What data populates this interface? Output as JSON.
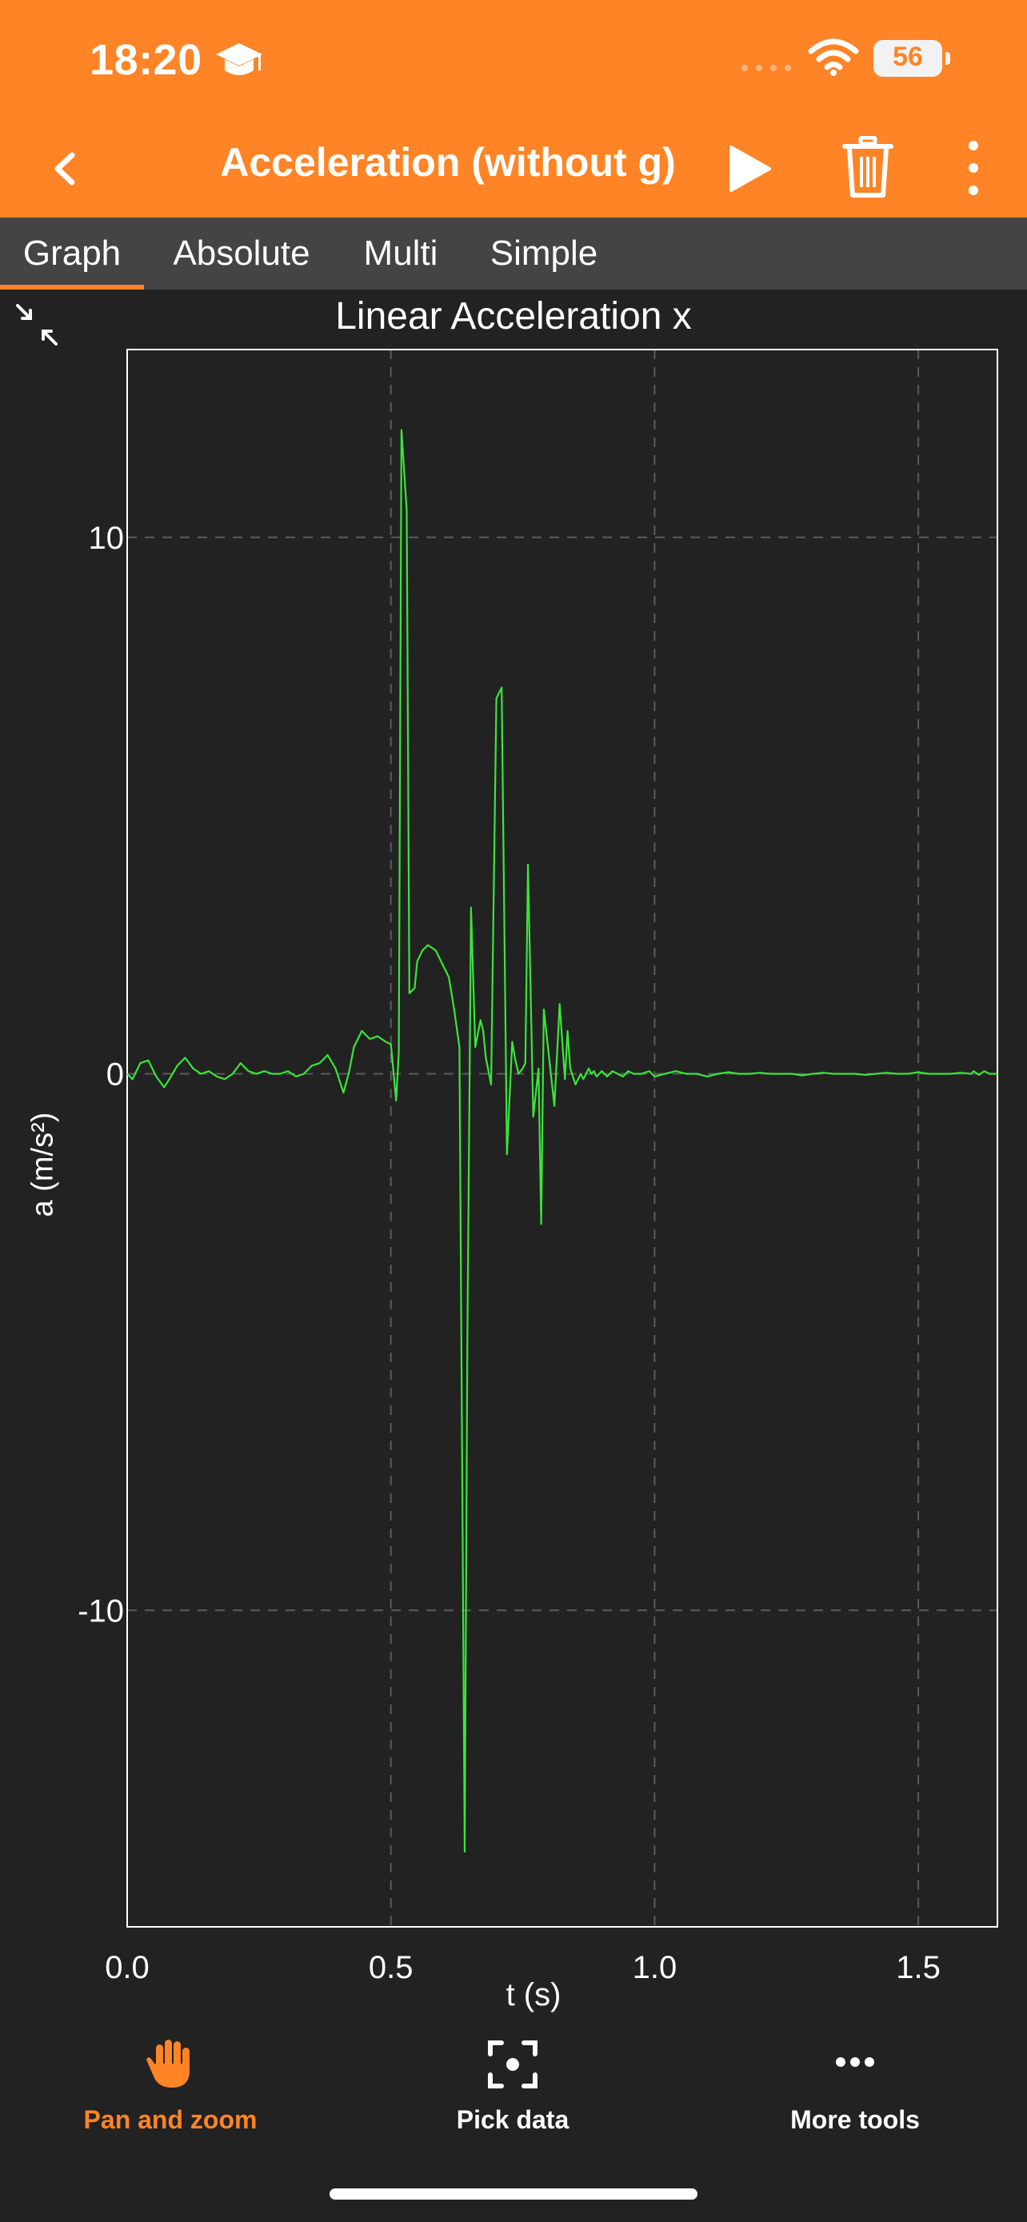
{
  "status_bar": {
    "time": "18:20",
    "battery_level": "56"
  },
  "nav_bar": {
    "title": "Acceleration (without g)"
  },
  "tabs": [
    {
      "label": "Graph",
      "active": true
    },
    {
      "label": "Absolute",
      "active": false
    },
    {
      "label": "Multi",
      "active": false
    },
    {
      "label": "Simple",
      "active": false
    }
  ],
  "chart_data": {
    "type": "line",
    "title": "Linear Acceleration x",
    "xlabel": "t (s)",
    "ylabel": "a (m/s²)",
    "xlim": [
      0.0,
      1.65
    ],
    "ylim": [
      -15.9,
      13.5
    ],
    "xticks": [
      0.0,
      0.5,
      1.0,
      1.5
    ],
    "xtick_labels": [
      "0.0",
      "0.5",
      "1.0",
      "1.5"
    ],
    "yticks": [
      10,
      0,
      -10
    ],
    "ytick_labels": [
      "10",
      "0",
      "-10"
    ],
    "grid": true,
    "series": [
      {
        "color": "#39e639",
        "x": [
          0.0,
          0.01,
          0.025,
          0.04,
          0.055,
          0.07,
          0.08,
          0.095,
          0.11,
          0.125,
          0.14,
          0.155,
          0.17,
          0.185,
          0.2,
          0.215,
          0.23,
          0.245,
          0.26,
          0.275,
          0.29,
          0.305,
          0.32,
          0.335,
          0.35,
          0.365,
          0.38,
          0.395,
          0.41,
          0.42,
          0.43,
          0.445,
          0.46,
          0.475,
          0.49,
          0.5,
          0.51,
          0.515,
          0.52,
          0.53,
          0.535,
          0.545,
          0.55,
          0.56,
          0.57,
          0.585,
          0.6,
          0.61,
          0.62,
          0.63,
          0.64,
          0.645,
          0.652,
          0.66,
          0.67,
          0.675,
          0.68,
          0.69,
          0.7,
          0.71,
          0.72,
          0.73,
          0.735,
          0.742,
          0.75,
          0.755,
          0.76,
          0.77,
          0.78,
          0.785,
          0.79,
          0.8,
          0.81,
          0.82,
          0.83,
          0.835,
          0.84,
          0.85,
          0.86,
          0.865,
          0.875,
          0.88,
          0.885,
          0.89,
          0.9,
          0.91,
          0.92,
          0.93,
          0.94,
          0.95,
          0.96,
          0.975,
          0.99,
          1.0,
          1.02,
          1.04,
          1.06,
          1.08,
          1.1,
          1.12,
          1.14,
          1.16,
          1.18,
          1.2,
          1.22,
          1.24,
          1.26,
          1.28,
          1.3,
          1.32,
          1.34,
          1.36,
          1.38,
          1.4,
          1.42,
          1.44,
          1.46,
          1.48,
          1.5,
          1.52,
          1.54,
          1.56,
          1.58,
          1.6,
          1.605,
          1.615,
          1.625,
          1.635,
          1.645,
          1.65
        ],
        "y": [
          0.0,
          -0.1,
          0.2,
          0.25,
          -0.05,
          -0.25,
          -0.1,
          0.15,
          0.3,
          0.1,
          0.0,
          0.05,
          -0.05,
          -0.1,
          0.0,
          0.2,
          0.05,
          0.0,
          0.05,
          0.0,
          0.0,
          0.05,
          -0.05,
          0.0,
          0.15,
          0.2,
          0.35,
          0.1,
          -0.35,
          0.0,
          0.5,
          0.8,
          0.65,
          0.7,
          0.6,
          0.55,
          -0.5,
          0.4,
          12.0,
          10.5,
          1.5,
          1.6,
          2.1,
          2.3,
          2.4,
          2.3,
          2.0,
          1.8,
          1.2,
          0.5,
          -14.5,
          -5.0,
          3.1,
          0.5,
          1.0,
          0.8,
          0.3,
          -0.2,
          7.0,
          7.2,
          -1.5,
          0.6,
          0.3,
          0.0,
          0.1,
          0.2,
          3.9,
          -0.8,
          0.1,
          -2.8,
          1.2,
          0.3,
          -0.6,
          1.3,
          -0.1,
          0.8,
          0.1,
          -0.2,
          0.0,
          -0.1,
          0.1,
          0.0,
          0.05,
          -0.05,
          0.05,
          -0.05,
          0.05,
          0.0,
          -0.05,
          0.05,
          0.0,
          0.0,
          0.05,
          -0.05,
          0.0,
          0.05,
          0.0,
          0.0,
          -0.05,
          0.0,
          0.03,
          0.0,
          0.0,
          0.02,
          0.0,
          0.0,
          0.0,
          -0.03,
          0.0,
          0.02,
          0.0,
          0.0,
          0.0,
          -0.02,
          0.0,
          0.02,
          0.0,
          0.0,
          0.03,
          0.0,
          0.0,
          0.0,
          0.02,
          0.0,
          0.05,
          -0.02,
          0.05,
          0.0,
          0.0,
          0.0
        ]
      }
    ]
  },
  "toolbar": {
    "tools": [
      {
        "label": "Pan and zoom",
        "active": true
      },
      {
        "label": "Pick data",
        "active": false
      },
      {
        "label": "More tools",
        "active": false
      }
    ]
  },
  "colors": {
    "accent": "#FF8426",
    "background": "#222222",
    "tab_bar": "#444444",
    "series": "#39e639",
    "grid": "#5a5a5a"
  }
}
